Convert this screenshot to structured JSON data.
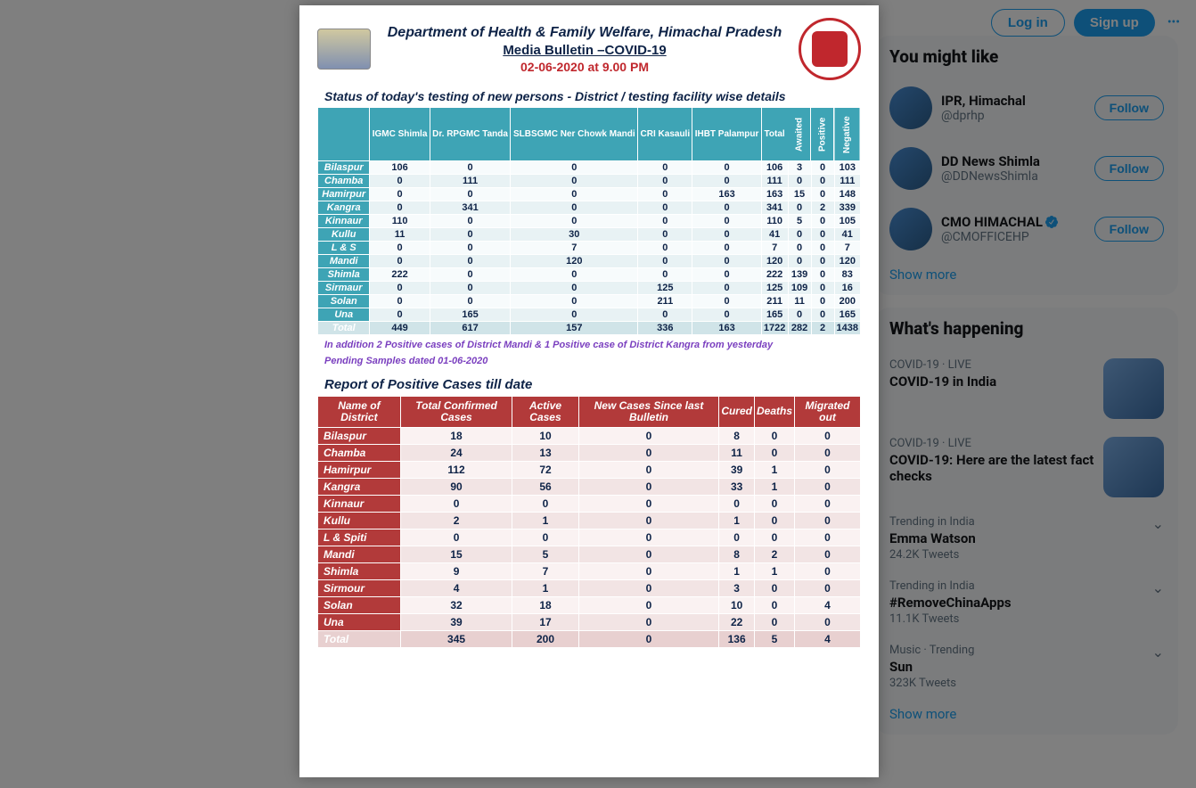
{
  "topbar": {
    "login": "Log in",
    "signup": "Sign up",
    "more": "•••"
  },
  "who": {
    "title": "You might like",
    "items": [
      {
        "name": "IPR, Himachal",
        "handle": "@dprhp",
        "verified": false
      },
      {
        "name": "DD News Shimla",
        "handle": "@DDNewsShimla",
        "verified": false
      },
      {
        "name": "CMO HIMACHAL",
        "handle": "@CMOFFICEHP",
        "verified": true
      }
    ],
    "follow": "Follow",
    "show_more": "Show more"
  },
  "happening": {
    "title": "What's happening",
    "items": [
      {
        "meta": "COVID-19 · LIVE",
        "title": "COVID-19 in India",
        "count": "",
        "thumb": true,
        "chev": false
      },
      {
        "meta": "COVID-19 · LIVE",
        "title": "COVID-19: Here are the latest fact checks",
        "count": "",
        "thumb": true,
        "chev": false
      },
      {
        "meta": "Trending in India",
        "title": "Emma Watson",
        "count": "24.2K Tweets",
        "thumb": false,
        "chev": true
      },
      {
        "meta": "Trending in India",
        "title": "#RemoveChinaApps",
        "count": "11.1K Tweets",
        "thumb": false,
        "chev": true
      },
      {
        "meta": "Music · Trending",
        "title": "Sun",
        "count": "323K Tweets",
        "thumb": false,
        "chev": true
      }
    ],
    "show_more": "Show more"
  },
  "doc": {
    "title": "Department of Health & Family Welfare, Himachal Pradesh",
    "subtitle": "Media Bulletin –COVID-19",
    "date": "02-06-2020 at 9.00 PM",
    "section1_title": "Status of today's testing of new persons - District / testing facility wise details",
    "t1_headers": [
      "",
      "IGMC Shimla",
      "Dr. RPGMC Tanda",
      "SLBSGMC Ner Chowk Mandi",
      "CRI Kasauli",
      "IHBT Palampur",
      "Total",
      "Awaited",
      "Positive",
      "Negative"
    ],
    "t1_rows": [
      [
        "Bilaspur",
        "106",
        "0",
        "0",
        "0",
        "0",
        "106",
        "3",
        "0",
        "103"
      ],
      [
        "Chamba",
        "0",
        "111",
        "0",
        "0",
        "0",
        "111",
        "0",
        "0",
        "111"
      ],
      [
        "Hamirpur",
        "0",
        "0",
        "0",
        "0",
        "163",
        "163",
        "15",
        "0",
        "148"
      ],
      [
        "Kangra",
        "0",
        "341",
        "0",
        "0",
        "0",
        "341",
        "0",
        "2",
        "339"
      ],
      [
        "Kinnaur",
        "110",
        "0",
        "0",
        "0",
        "0",
        "110",
        "5",
        "0",
        "105"
      ],
      [
        "Kullu",
        "11",
        "0",
        "30",
        "0",
        "0",
        "41",
        "0",
        "0",
        "41"
      ],
      [
        "L & S",
        "0",
        "0",
        "7",
        "0",
        "0",
        "7",
        "0",
        "0",
        "7"
      ],
      [
        "Mandi",
        "0",
        "0",
        "120",
        "0",
        "0",
        "120",
        "0",
        "0",
        "120"
      ],
      [
        "Shimla",
        "222",
        "0",
        "0",
        "0",
        "0",
        "222",
        "139",
        "0",
        "83"
      ],
      [
        "Sirmaur",
        "0",
        "0",
        "0",
        "125",
        "0",
        "125",
        "109",
        "0",
        "16"
      ],
      [
        "Solan",
        "0",
        "0",
        "0",
        "211",
        "0",
        "211",
        "11",
        "0",
        "200"
      ],
      [
        "Una",
        "0",
        "165",
        "0",
        "0",
        "0",
        "165",
        "0",
        "0",
        "165"
      ],
      [
        "Total",
        "449",
        "617",
        "157",
        "336",
        "163",
        "1722",
        "282",
        "2",
        "1438"
      ]
    ],
    "addendum1": "In addition 2 Positive cases of District Mandi & 1 Positive case of District Kangra  from  yesterday",
    "addendum2": "Pending Samples dated 01-06-2020",
    "section2_title": "Report of Positive Cases till date",
    "t2_headers": [
      "Name of District",
      "Total Confirmed Cases",
      "Active Cases",
      "New Cases Since last Bulletin",
      "Cured",
      "Deaths",
      "Migrated out"
    ],
    "t2_rows": [
      [
        "Bilaspur",
        "18",
        "10",
        "0",
        "8",
        "0",
        "0"
      ],
      [
        "Chamba",
        "24",
        "13",
        "0",
        "11",
        "0",
        "0"
      ],
      [
        "Hamirpur",
        "112",
        "72",
        "0",
        "39",
        "1",
        "0"
      ],
      [
        "Kangra",
        "90",
        "56",
        "0",
        "33",
        "1",
        "0"
      ],
      [
        "Kinnaur",
        "0",
        "0",
        "0",
        "0",
        "0",
        "0"
      ],
      [
        "Kullu",
        "2",
        "1",
        "0",
        "1",
        "0",
        "0"
      ],
      [
        "L & Spiti",
        "0",
        "0",
        "0",
        "0",
        "0",
        "0"
      ],
      [
        "Mandi",
        "15",
        "5",
        "0",
        "8",
        "2",
        "0"
      ],
      [
        "Shimla",
        "9",
        "7",
        "0",
        "1",
        "1",
        "0"
      ],
      [
        "Sirmour",
        "4",
        "1",
        "0",
        "3",
        "0",
        "0"
      ],
      [
        "Solan",
        "32",
        "18",
        "0",
        "10",
        "0",
        "4"
      ],
      [
        "Una",
        "39",
        "17",
        "0",
        "22",
        "0",
        "0"
      ],
      [
        "Total",
        "345",
        "200",
        "0",
        "136",
        "5",
        "4"
      ]
    ]
  }
}
